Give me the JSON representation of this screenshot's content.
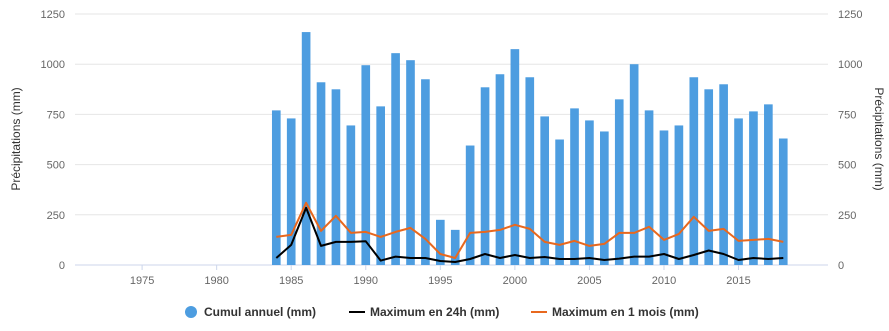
{
  "chart_data": {
    "type": "bar",
    "title": "",
    "xlabel": "",
    "ylabel": "Précipitations (mm)",
    "ylabel_right": "Précipitations (mm)",
    "xlim": [
      1970.5,
      2021
    ],
    "ylim": [
      0,
      1250
    ],
    "x_ticks": [
      1975,
      1980,
      1985,
      1990,
      1995,
      2000,
      2005,
      2010,
      2015
    ],
    "y_ticks": [
      0,
      250,
      500,
      750,
      1000,
      1250
    ],
    "grid": true,
    "legend_position": "bottom",
    "x": [
      1984,
      1985,
      1986,
      1987,
      1988,
      1989,
      1990,
      1991,
      1992,
      1993,
      1994,
      1995,
      1996,
      1997,
      1998,
      1999,
      2000,
      2001,
      2002,
      2003,
      2004,
      2005,
      2006,
      2007,
      2008,
      2009,
      2010,
      2011,
      2012,
      2013,
      2014,
      2015,
      2016,
      2017,
      2018
    ],
    "series": [
      {
        "name": "Cumul annuel (mm)",
        "type": "bar",
        "color": "#4d9de0",
        "values": [
          770,
          730,
          1160,
          910,
          875,
          695,
          995,
          790,
          1055,
          1020,
          925,
          225,
          175,
          595,
          885,
          950,
          1075,
          935,
          740,
          625,
          780,
          720,
          665,
          825,
          1000,
          770,
          670,
          695,
          935,
          875,
          900,
          730,
          765,
          800,
          630
        ]
      },
      {
        "name": "Maximum en 24h (mm)",
        "type": "line",
        "color": "#000000",
        "values": [
          35,
          100,
          285,
          95,
          115,
          115,
          118,
          22,
          42,
          35,
          35,
          20,
          15,
          30,
          55,
          35,
          50,
          35,
          40,
          30,
          30,
          35,
          25,
          32,
          42,
          42,
          55,
          30,
          50,
          72,
          55,
          25,
          35,
          30,
          35
        ]
      },
      {
        "name": "Maximum en 1 mois (mm)",
        "type": "line",
        "color": "#e8681e",
        "values": [
          140,
          150,
          310,
          170,
          245,
          160,
          165,
          140,
          165,
          185,
          130,
          55,
          35,
          160,
          165,
          175,
          200,
          180,
          115,
          100,
          120,
          95,
          105,
          160,
          160,
          190,
          125,
          155,
          240,
          170,
          180,
          120,
          125,
          130,
          115
        ]
      }
    ]
  }
}
